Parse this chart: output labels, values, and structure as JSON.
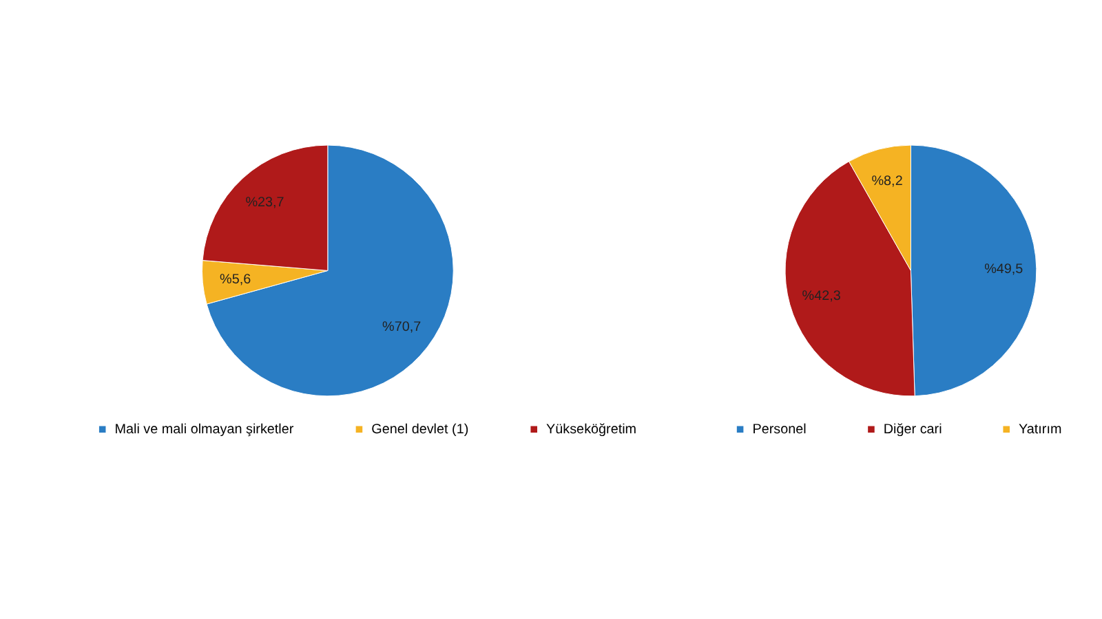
{
  "chart_data": [
    {
      "type": "pie",
      "categories": [
        "Mali ve mali olmayan şirketler",
        "Genel devlet (1)",
        "Yükseköğretim"
      ],
      "values": [
        70.7,
        5.6,
        23.7
      ],
      "colors": [
        "#2a7dc4",
        "#f5b323",
        "#b01a1a"
      ],
      "value_labels": [
        "%70,7",
        "%5,6",
        "%23,7"
      ],
      "legend": "bottom"
    },
    {
      "type": "pie",
      "categories": [
        "Personel",
        "Diğer cari",
        "Yatırım"
      ],
      "values": [
        49.5,
        42.3,
        8.2
      ],
      "colors": [
        "#2a7dc4",
        "#b01a1a",
        "#f5b323"
      ],
      "value_labels": [
        "%49,5",
        "%42,3",
        "%8,2"
      ],
      "legend": "bottom"
    }
  ]
}
